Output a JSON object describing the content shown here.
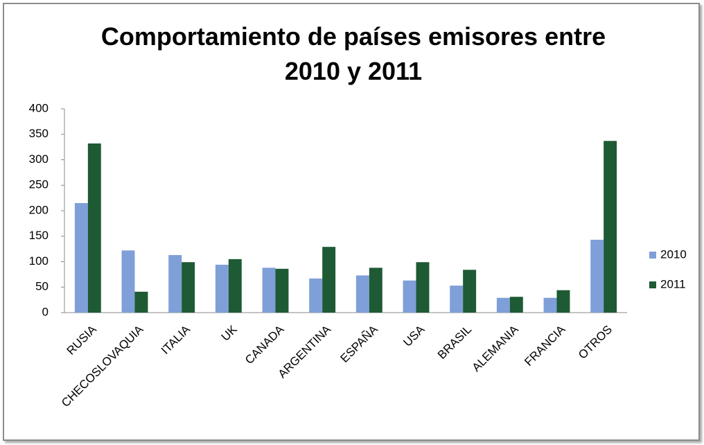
{
  "chart_data": {
    "type": "bar",
    "title": "Comportamiento de países emisores entre 2010 y 2011",
    "categories": [
      "RUSIA",
      "CHECOSLOVAQUIA",
      "ITALIA",
      "UK",
      "CANADA",
      "ARGENTINA",
      "ESPAÑA",
      "USA",
      "BRASIL",
      "ALEMANIA",
      "FRANCIA",
      "OTROS"
    ],
    "series": [
      {
        "name": "2010",
        "color": "#7f9fd8",
        "values": [
          215,
          122,
          113,
          94,
          88,
          67,
          73,
          63,
          53,
          29,
          29,
          143
        ]
      },
      {
        "name": "2011",
        "color": "#1e5a34",
        "values": [
          332,
          41,
          99,
          105,
          86,
          129,
          88,
          99,
          84,
          31,
          44,
          337
        ]
      }
    ],
    "ylim": [
      0,
      400
    ],
    "yticks": [
      0,
      50,
      100,
      150,
      200,
      250,
      300,
      350,
      400
    ],
    "legend": "right"
  }
}
